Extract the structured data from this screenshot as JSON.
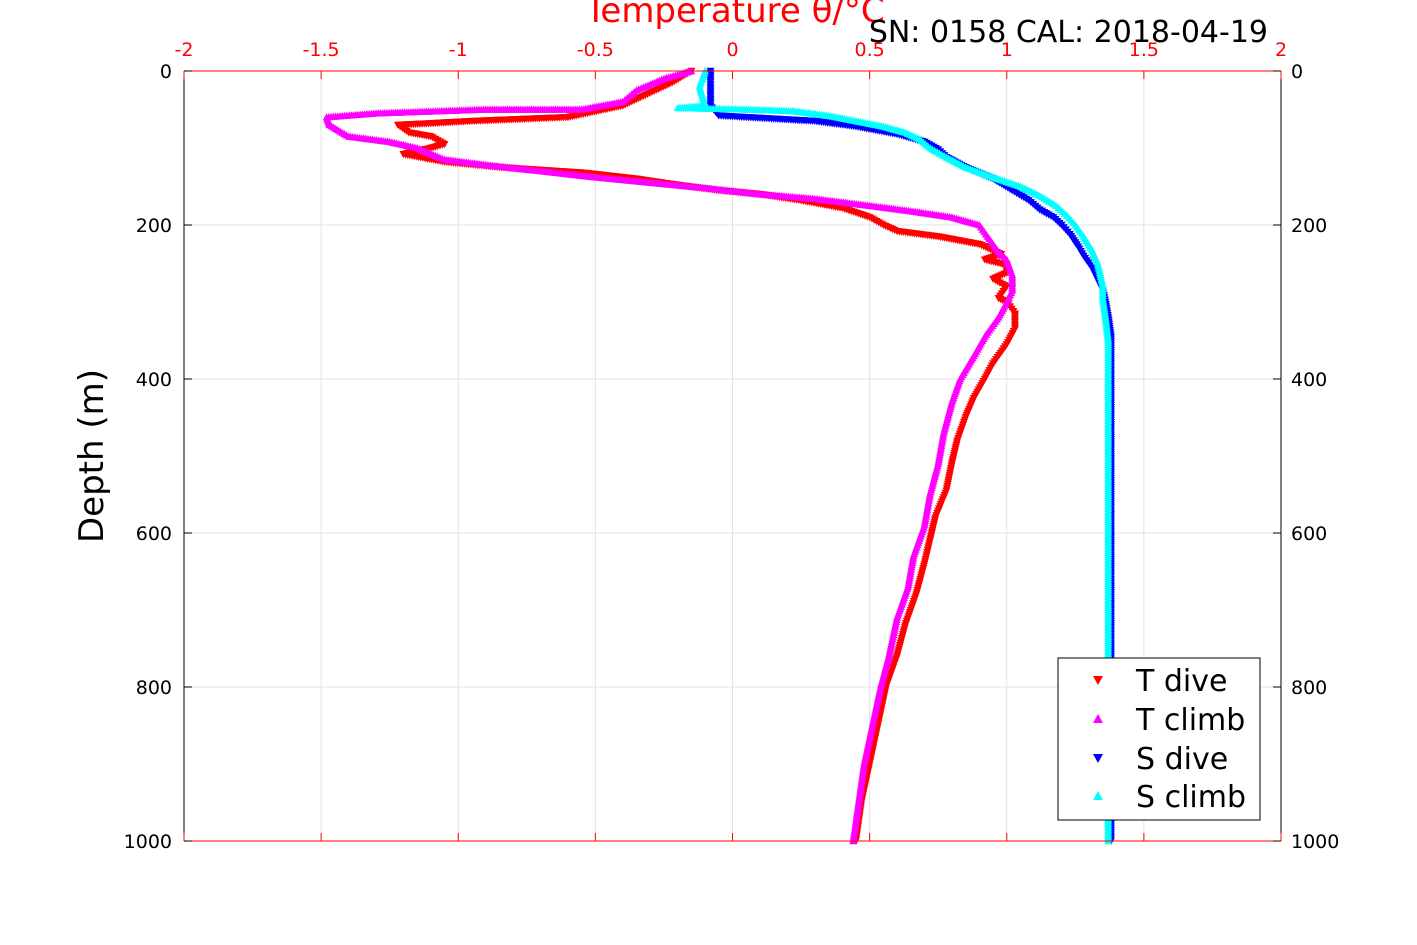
{
  "chart_data": {
    "type": "scatter",
    "title": "",
    "annotation": "SN: 0158  CAL: 2018-04-19",
    "xlabel": "Temperature θ/°C",
    "ylabel": "Depth (m)",
    "x_top_ticks": [
      "-2",
      "-1.5",
      "-1",
      "-0.5",
      "0",
      "0.5",
      "1",
      "1.5",
      "2"
    ],
    "x_tick_values": [
      -2,
      -1.5,
      -1,
      -0.5,
      0,
      0.5,
      1,
      1.5,
      2
    ],
    "xlim": [
      -2,
      2
    ],
    "y_ticks": [
      "0",
      "200",
      "400",
      "600",
      "800",
      "1000"
    ],
    "y_tick_values": [
      0,
      200,
      400,
      600,
      800,
      1000
    ],
    "ylim": [
      0,
      1000
    ],
    "y_reversed": true,
    "grid": true,
    "legend_position": "bottom-right",
    "series": [
      {
        "name": "T dive",
        "marker": "triangle-down",
        "color": "#ff0000",
        "points": [
          [
            -0.15,
            0
          ],
          [
            -0.22,
            15
          ],
          [
            -0.4,
            45
          ],
          [
            -0.6,
            60
          ],
          [
            -0.95,
            65
          ],
          [
            -1.1,
            68
          ],
          [
            -1.22,
            70
          ],
          [
            -1.18,
            80
          ],
          [
            -1.1,
            85
          ],
          [
            -1.05,
            95
          ],
          [
            -1.1,
            100
          ],
          [
            -1.2,
            108
          ],
          [
            -1.05,
            118
          ],
          [
            -0.85,
            125
          ],
          [
            -0.55,
            132
          ],
          [
            -0.35,
            140
          ],
          [
            -0.2,
            148
          ],
          [
            -0.05,
            155
          ],
          [
            0.1,
            160
          ],
          [
            0.25,
            168
          ],
          [
            0.4,
            178
          ],
          [
            0.5,
            190
          ],
          [
            0.55,
            200
          ],
          [
            0.6,
            208
          ],
          [
            0.75,
            215
          ],
          [
            0.9,
            225
          ],
          [
            0.98,
            238
          ],
          [
            0.92,
            245
          ],
          [
            1.0,
            252
          ],
          [
            1.0,
            262
          ],
          [
            0.95,
            270
          ],
          [
            1.0,
            280
          ],
          [
            0.97,
            295
          ],
          [
            1.0,
            300
          ],
          [
            1.03,
            315
          ],
          [
            1.03,
            335
          ],
          [
            1.0,
            355
          ],
          [
            0.95,
            380
          ],
          [
            0.92,
            400
          ],
          [
            0.88,
            425
          ],
          [
            0.85,
            450
          ],
          [
            0.82,
            480
          ],
          [
            0.8,
            510
          ],
          [
            0.78,
            545
          ],
          [
            0.74,
            580
          ],
          [
            0.72,
            610
          ],
          [
            0.7,
            640
          ],
          [
            0.67,
            680
          ],
          [
            0.63,
            720
          ],
          [
            0.6,
            760
          ],
          [
            0.56,
            800
          ],
          [
            0.53,
            850
          ],
          [
            0.5,
            900
          ],
          [
            0.47,
            950
          ],
          [
            0.45,
            1000
          ]
        ]
      },
      {
        "name": "T climb",
        "marker": "triangle-up",
        "color": "#ff00ff",
        "points": [
          [
            -0.15,
            0
          ],
          [
            -0.25,
            10
          ],
          [
            -0.35,
            25
          ],
          [
            -0.4,
            40
          ],
          [
            -0.55,
            50
          ],
          [
            -0.9,
            50
          ],
          [
            -1.3,
            55
          ],
          [
            -1.48,
            60
          ],
          [
            -1.47,
            70
          ],
          [
            -1.4,
            85
          ],
          [
            -1.25,
            92
          ],
          [
            -1.15,
            100
          ],
          [
            -1.05,
            115
          ],
          [
            -0.9,
            122
          ],
          [
            -0.7,
            130
          ],
          [
            -0.5,
            138
          ],
          [
            -0.3,
            145
          ],
          [
            -0.1,
            152
          ],
          [
            0.1,
            160
          ],
          [
            0.3,
            166
          ],
          [
            0.5,
            175
          ],
          [
            0.65,
            182
          ],
          [
            0.8,
            190
          ],
          [
            0.9,
            200
          ],
          [
            0.93,
            215
          ],
          [
            0.97,
            235
          ],
          [
            1.0,
            245
          ],
          [
            1.02,
            265
          ],
          [
            1.02,
            285
          ],
          [
            1.0,
            300
          ],
          [
            0.97,
            320
          ],
          [
            0.92,
            345
          ],
          [
            0.88,
            370
          ],
          [
            0.83,
            400
          ],
          [
            0.8,
            430
          ],
          [
            0.77,
            470
          ],
          [
            0.75,
            510
          ],
          [
            0.72,
            550
          ],
          [
            0.7,
            590
          ],
          [
            0.66,
            630
          ],
          [
            0.64,
            670
          ],
          [
            0.6,
            710
          ],
          [
            0.57,
            760
          ],
          [
            0.54,
            800
          ],
          [
            0.51,
            850
          ],
          [
            0.48,
            900
          ],
          [
            0.46,
            950
          ],
          [
            0.44,
            1000
          ]
        ]
      },
      {
        "name": "S dive",
        "marker": "triangle-down",
        "color": "#0000ff",
        "points": [
          [
            -0.08,
            0
          ],
          [
            -0.08,
            20
          ],
          [
            -0.08,
            45
          ],
          [
            -0.05,
            58
          ],
          [
            0.05,
            60
          ],
          [
            0.15,
            62
          ],
          [
            0.3,
            65
          ],
          [
            0.45,
            72
          ],
          [
            0.6,
            82
          ],
          [
            0.7,
            92
          ],
          [
            0.75,
            102
          ],
          [
            0.78,
            112
          ],
          [
            0.85,
            125
          ],
          [
            0.95,
            140
          ],
          [
            1.02,
            155
          ],
          [
            1.08,
            168
          ],
          [
            1.12,
            180
          ],
          [
            1.17,
            190
          ],
          [
            1.2,
            200
          ],
          [
            1.23,
            212
          ],
          [
            1.26,
            228
          ],
          [
            1.28,
            240
          ],
          [
            1.31,
            255
          ],
          [
            1.33,
            270
          ],
          [
            1.35,
            285
          ],
          [
            1.36,
            300
          ],
          [
            1.37,
            320
          ],
          [
            1.38,
            345
          ],
          [
            1.38,
            380
          ],
          [
            1.38,
            420
          ],
          [
            1.38,
            470
          ],
          [
            1.38,
            520
          ],
          [
            1.38,
            570
          ],
          [
            1.38,
            620
          ],
          [
            1.38,
            680
          ],
          [
            1.38,
            740
          ],
          [
            1.38,
            800
          ],
          [
            1.38,
            860
          ],
          [
            1.38,
            920
          ],
          [
            1.38,
            980
          ],
          [
            1.38,
            1000
          ]
        ]
      },
      {
        "name": "S climb",
        "marker": "triangle-up",
        "color": "#00ffff",
        "points": [
          [
            -0.1,
            0
          ],
          [
            -0.12,
            20
          ],
          [
            -0.1,
            45
          ],
          [
            -0.2,
            48
          ],
          [
            0.05,
            50
          ],
          [
            0.22,
            52
          ],
          [
            0.35,
            58
          ],
          [
            0.45,
            65
          ],
          [
            0.55,
            72
          ],
          [
            0.63,
            80
          ],
          [
            0.68,
            88
          ],
          [
            0.72,
            100
          ],
          [
            0.78,
            112
          ],
          [
            0.85,
            125
          ],
          [
            0.95,
            138
          ],
          [
            1.05,
            150
          ],
          [
            1.12,
            162
          ],
          [
            1.18,
            175
          ],
          [
            1.22,
            188
          ],
          [
            1.25,
            200
          ],
          [
            1.28,
            215
          ],
          [
            1.31,
            232
          ],
          [
            1.33,
            248
          ],
          [
            1.34,
            262
          ],
          [
            1.35,
            278
          ],
          [
            1.35,
            295
          ],
          [
            1.36,
            320
          ],
          [
            1.37,
            350
          ],
          [
            1.37,
            390
          ],
          [
            1.37,
            440
          ],
          [
            1.37,
            500
          ],
          [
            1.37,
            560
          ],
          [
            1.37,
            620
          ],
          [
            1.37,
            680
          ],
          [
            1.37,
            740
          ],
          [
            1.37,
            800
          ],
          [
            1.37,
            860
          ],
          [
            1.37,
            920
          ],
          [
            1.37,
            980
          ],
          [
            1.37,
            1000
          ]
        ]
      }
    ]
  }
}
